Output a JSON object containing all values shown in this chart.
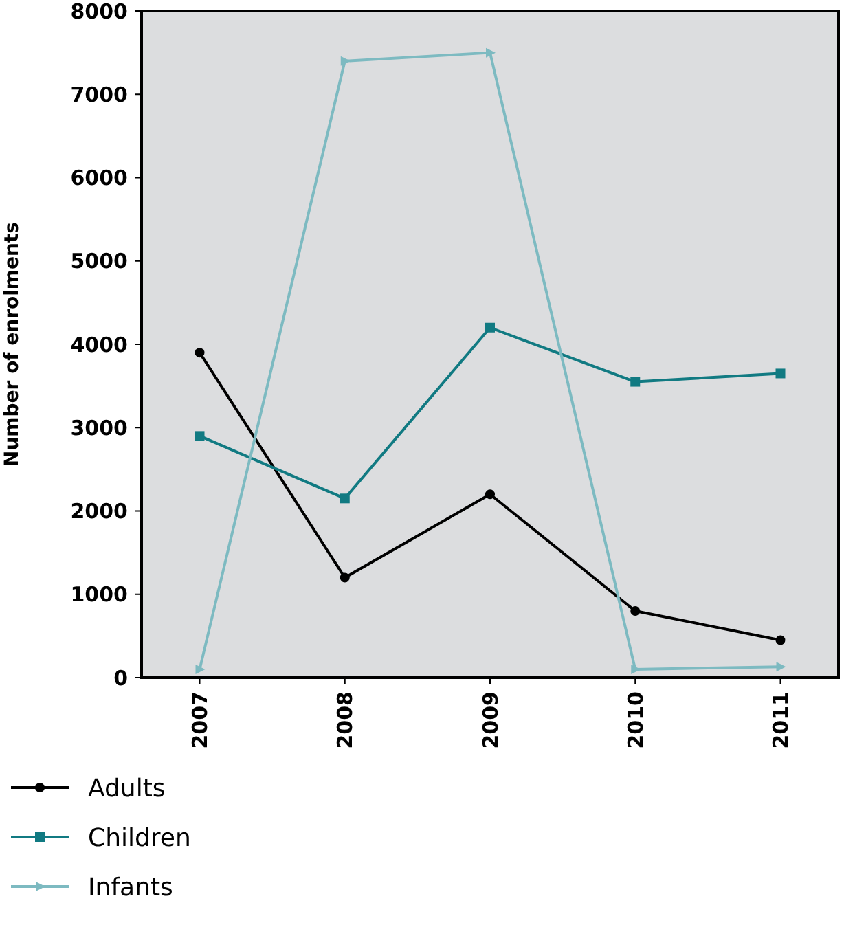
{
  "chart_data": {
    "type": "line",
    "ylabel": "Number of enrolments",
    "categories": [
      "2007",
      "2008",
      "2009",
      "2010",
      "2011"
    ],
    "series": [
      {
        "name": "Adults",
        "color": "#000000",
        "marker": "circle",
        "values": [
          3900,
          1200,
          2200,
          800,
          450
        ]
      },
      {
        "name": "Children",
        "color": "#117a82",
        "marker": "square",
        "values": [
          2900,
          2150,
          4200,
          3550,
          3650
        ]
      },
      {
        "name": "Infants",
        "color": "#7dbac1",
        "marker": "triangle",
        "values": [
          100,
          7400,
          7500,
          100,
          130
        ]
      }
    ],
    "ylim": [
      0,
      8000
    ],
    "yticks": [
      0,
      1000,
      2000,
      3000,
      4000,
      5000,
      6000,
      7000,
      8000
    ],
    "grid": false,
    "legend": "bottom left"
  }
}
